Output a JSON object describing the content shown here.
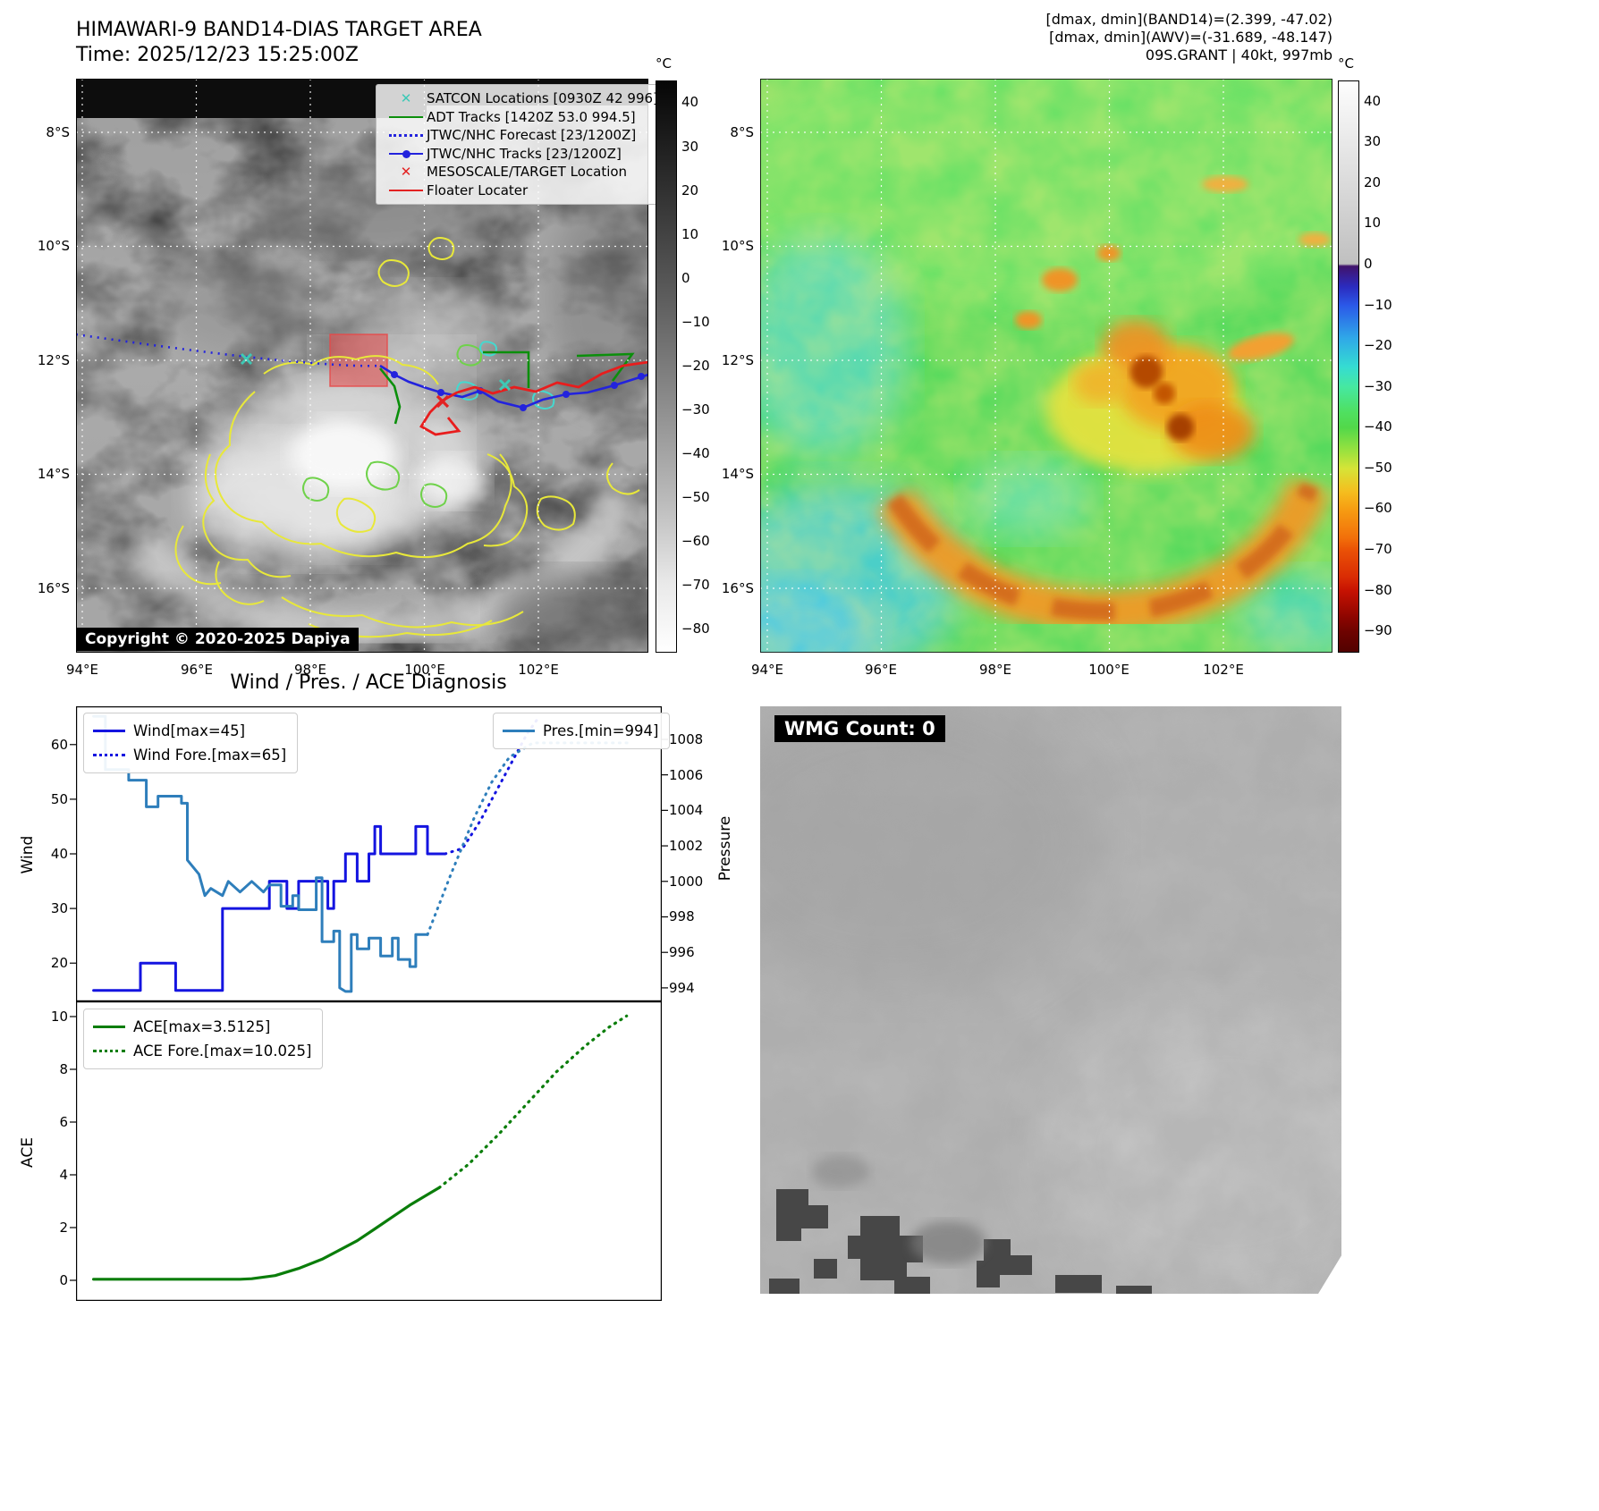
{
  "band14": {
    "title": "HIMAWARI-9 BAND14-DIAS TARGET AREA",
    "time_line": "Time: 2025/12/23 15:25:00Z",
    "copyright": "Copyright © 2020-2025 Dapiya",
    "legend": {
      "satcon": "SATCON Locations [0930Z 42 996]",
      "adt": "ADT Tracks [1420Z 53.0 994.5]",
      "forecast": "JTWC/NHC Forecast [23/1200Z]",
      "tracks": "JTWC/NHC Tracks [23/1200Z]",
      "mesoscale": "MESOSCALE/TARGET Location",
      "floater": "Floater Locater"
    },
    "marker_colors": {
      "satcon": "#3ec9b6",
      "adt": "#0b8f0b",
      "jtwc": "#2323dd",
      "meso": "#e32222",
      "floater": "#e32222"
    },
    "x_ticks": [
      "94°E",
      "96°E",
      "98°E",
      "100°E",
      "102°E"
    ],
    "y_ticks": [
      "8°S",
      "10°S",
      "12°S",
      "14°S",
      "16°S"
    ],
    "colorbar_unit": "°C",
    "colorbar_ticks": [
      "40",
      "30",
      "20",
      "10",
      "0",
      "−10",
      "−20",
      "−30",
      "−40",
      "−50",
      "−60",
      "−70",
      "−80"
    ]
  },
  "awv": {
    "header1": "[dmax, dmin](BAND14)=(2.399, -47.02)",
    "header2": "[dmax, dmin](AWV)=(-31.689, -48.147)",
    "header3": "09S.GRANT | 40kt, 997mb",
    "x_ticks": [
      "94°E",
      "96°E",
      "98°E",
      "100°E",
      "102°E"
    ],
    "y_ticks": [
      "8°S",
      "10°S",
      "12°S",
      "14°S",
      "16°S"
    ],
    "colorbar_unit": "°C",
    "colorbar_ticks": [
      "40",
      "30",
      "20",
      "10",
      "0",
      "−10",
      "−20",
      "−30",
      "−40",
      "−50",
      "−60",
      "−70",
      "−80",
      "−90"
    ]
  },
  "diagnosis_title": "Wind / Pres. / ACE Diagnosis",
  "wmg": {
    "label": "WMG Count: 0"
  },
  "chart_data": [
    {
      "id": "wind-pressure",
      "type": "line",
      "x_range": [
        0,
        100
      ],
      "left_axis": {
        "label": "Wind",
        "range": [
          13,
          67
        ],
        "ticks": [
          20,
          30,
          40,
          50,
          60
        ],
        "tick_labels": [
          "60",
          "50",
          "40",
          "30",
          "20"
        ]
      },
      "right_axis": {
        "label": "Pressure",
        "range": [
          993.24,
          1009.86
        ],
        "ticks": [
          994,
          996,
          998,
          1000,
          1002,
          1004,
          1006,
          1008
        ],
        "tick_labels": [
          "1008",
          "1006",
          "1004",
          "1002",
          "1000",
          "998",
          "996",
          "994"
        ]
      },
      "legend_left": [
        {
          "label": "Wind[max=45]",
          "color": "#1414e0",
          "dash": false
        },
        {
          "label": "Wind Fore.[max=65]",
          "color": "#1414e0",
          "dash": true
        }
      ],
      "legend_right": [
        {
          "label": "Pres.[min=994]",
          "color": "#2e7ebb",
          "dash": false
        }
      ],
      "series": [
        {
          "key": "wind",
          "name": "Wind",
          "axis": "left",
          "color": "#1414e0",
          "width": 3,
          "dash": null,
          "points": [
            [
              3,
              15
            ],
            [
              11,
              15
            ],
            [
              11,
              20
            ],
            [
              17,
              20
            ],
            [
              17,
              15
            ],
            [
              25,
              15
            ],
            [
              25,
              30
            ],
            [
              33,
              30
            ],
            [
              33,
              35
            ],
            [
              36,
              35
            ],
            [
              36,
              30
            ],
            [
              38,
              30
            ],
            [
              38,
              35
            ],
            [
              43,
              35
            ],
            [
              43,
              30
            ],
            [
              44,
              30
            ],
            [
              44,
              35
            ],
            [
              46,
              35
            ],
            [
              46,
              40
            ],
            [
              48,
              40
            ],
            [
              48,
              35
            ],
            [
              50,
              35
            ],
            [
              50,
              40
            ],
            [
              51,
              40
            ],
            [
              51,
              45
            ],
            [
              52,
              45
            ],
            [
              52,
              40
            ],
            [
              58,
              40
            ],
            [
              58,
              45
            ],
            [
              60,
              45
            ],
            [
              60,
              40
            ],
            [
              63,
              40
            ]
          ]
        },
        {
          "key": "wind-fore",
          "name": "Wind Fore.",
          "axis": "left",
          "color": "#1414e0",
          "width": 3,
          "dash": "1.2 6.5",
          "points": [
            [
              63,
              40
            ],
            [
              66,
              41
            ],
            [
              69,
              46
            ],
            [
              72,
              52
            ],
            [
              75,
              58
            ],
            [
              77,
              62
            ],
            [
              79,
              65
            ]
          ]
        },
        {
          "key": "pres",
          "name": "Pres.",
          "axis": "right",
          "color": "#2e7ebb",
          "width": 3,
          "dash": null,
          "points": [
            [
              3,
              1009.3
            ],
            [
              5,
              1009.3
            ],
            [
              5,
              1006.3
            ],
            [
              9,
              1006.3
            ],
            [
              9,
              1005.7
            ],
            [
              12,
              1005.7
            ],
            [
              12,
              1004.2
            ],
            [
              14,
              1004.2
            ],
            [
              14,
              1004.8
            ],
            [
              18,
              1004.8
            ],
            [
              18,
              1004.4
            ],
            [
              19,
              1004.4
            ],
            [
              19,
              1001.2
            ],
            [
              21,
              1000.4
            ],
            [
              22,
              999.2
            ],
            [
              23,
              999.6
            ],
            [
              25,
              999.2
            ],
            [
              26,
              1000.0
            ],
            [
              28,
              999.4
            ],
            [
              30,
              1000.0
            ],
            [
              32,
              999.4
            ],
            [
              33,
              999.8
            ],
            [
              35,
              999.8
            ],
            [
              35,
              998.6
            ],
            [
              37,
              998.6
            ],
            [
              37,
              999.2
            ],
            [
              38,
              999.2
            ],
            [
              38,
              998.4
            ],
            [
              41,
              998.4
            ],
            [
              41,
              1000.2
            ],
            [
              42,
              1000.2
            ],
            [
              42,
              996.6
            ],
            [
              44,
              996.6
            ],
            [
              44,
              997.2
            ],
            [
              45,
              997.2
            ],
            [
              45,
              994.0
            ],
            [
              46,
              993.8
            ],
            [
              47,
              993.8
            ],
            [
              47,
              997.0
            ],
            [
              48,
              997.0
            ],
            [
              48,
              996.2
            ],
            [
              50,
              996.2
            ],
            [
              50,
              996.8
            ],
            [
              52,
              996.8
            ],
            [
              52,
              995.8
            ],
            [
              54,
              995.8
            ],
            [
              54,
              996.8
            ],
            [
              55,
              996.8
            ],
            [
              55,
              995.6
            ],
            [
              57,
              995.6
            ],
            [
              57,
              995.2
            ],
            [
              58,
              995.2
            ],
            [
              58,
              997.0
            ],
            [
              60,
              997.0
            ]
          ]
        },
        {
          "key": "pres-fore",
          "name": "Pres. Fore.",
          "axis": "right",
          "color": "#2e7ebb",
          "width": 3,
          "dash": "1.2 6.5",
          "points": [
            [
              60,
              997.0
            ],
            [
              64,
              1000.4
            ],
            [
              68,
              1003.6
            ],
            [
              71,
              1005.6
            ],
            [
              74,
              1007.0
            ],
            [
              78,
              1007.8
            ],
            [
              95,
              1007.8
            ]
          ]
        }
      ]
    },
    {
      "id": "ace",
      "type": "line",
      "x_range": [
        0,
        100
      ],
      "left_axis": {
        "label": "ACE",
        "range": [
          -0.78,
          10.576
        ],
        "ticks": [
          0,
          2,
          4,
          6,
          8,
          10
        ],
        "tick_labels": [
          "10",
          "8",
          "6",
          "4",
          "2",
          "0"
        ]
      },
      "legend_left": [
        {
          "label": "ACE[max=3.5125]",
          "color": "#0a7d0a",
          "dash": false
        },
        {
          "label": "ACE Fore.[max=10.025]",
          "color": "#0a7d0a",
          "dash": true
        }
      ],
      "series": [
        {
          "key": "ace",
          "name": "ACE",
          "axis": "left",
          "color": "#0a7d0a",
          "width": 3.2,
          "dash": null,
          "points": [
            [
              3,
              0.04
            ],
            [
              28,
              0.04
            ],
            [
              30,
              0.06
            ],
            [
              34,
              0.18
            ],
            [
              38,
              0.45
            ],
            [
              42,
              0.8
            ],
            [
              45,
              1.15
            ],
            [
              48,
              1.5
            ],
            [
              51,
              1.95
            ],
            [
              54,
              2.4
            ],
            [
              57,
              2.85
            ],
            [
              60,
              3.25
            ],
            [
              62,
              3.5125
            ]
          ]
        },
        {
          "key": "ace-fore",
          "name": "ACE Fore.",
          "axis": "left",
          "color": "#0a7d0a",
          "width": 3.2,
          "dash": "1.2 6.5",
          "points": [
            [
              62,
              3.5125
            ],
            [
              67,
              4.4
            ],
            [
              72,
              5.5
            ],
            [
              77,
              6.7
            ],
            [
              82,
              7.9
            ],
            [
              87,
              8.9
            ],
            [
              91,
              9.6
            ],
            [
              94,
              10.025
            ]
          ]
        }
      ]
    }
  ]
}
